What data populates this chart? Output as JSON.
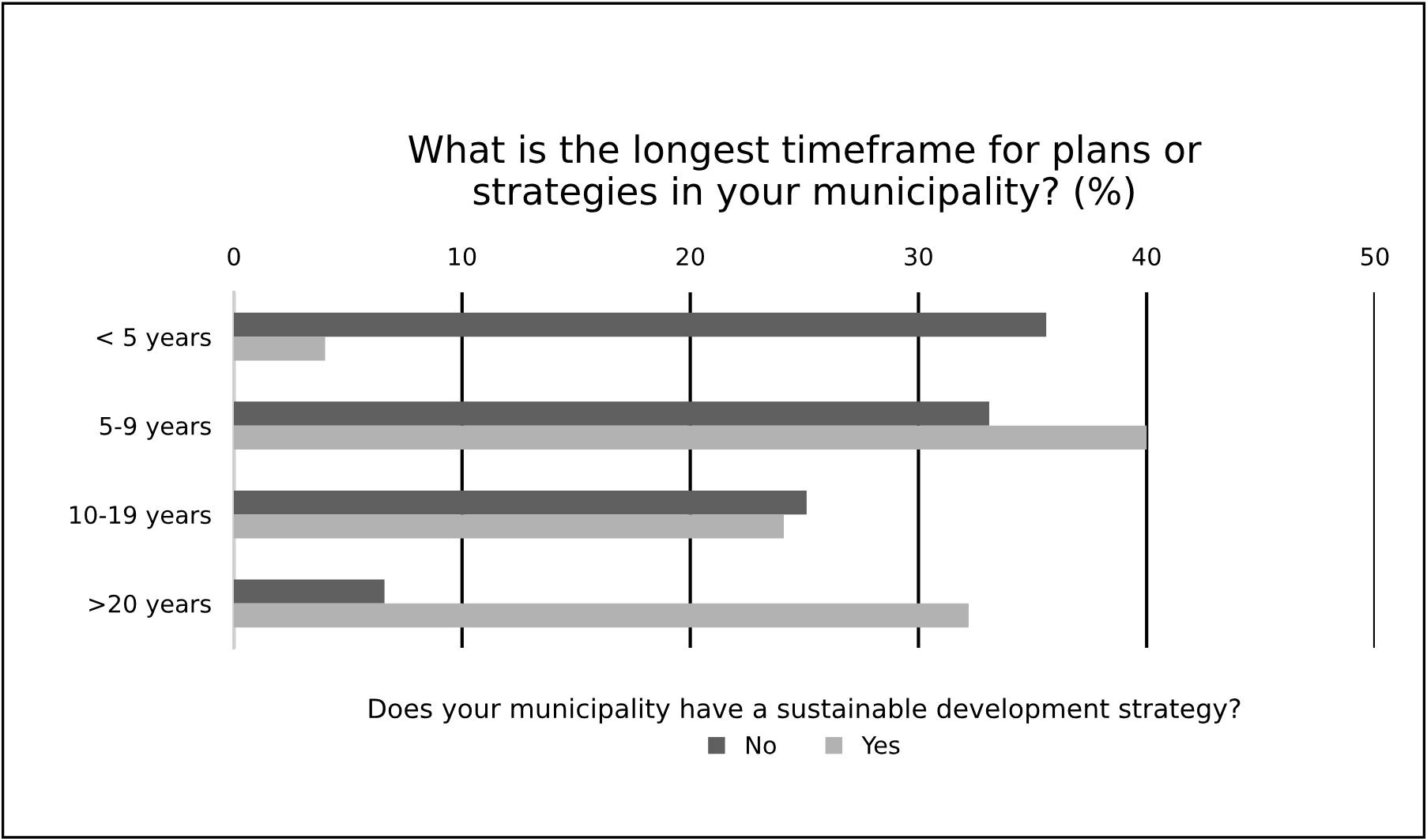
{
  "chart_data": {
    "type": "bar",
    "orientation": "horizontal",
    "title": "What is the longest timeframe for plans or\nstrategies in your municipality? (%)",
    "categories": [
      "< 5 years",
      "5-9 years",
      "10-19 years",
      ">20 years"
    ],
    "series": [
      {
        "name": "No",
        "color": "#5f5f5f",
        "values": [
          35.6,
          33.1,
          25.1,
          6.6
        ]
      },
      {
        "name": "Yes",
        "color": "#b2b2b2",
        "values": [
          4.0,
          40.0,
          24.1,
          32.2
        ]
      }
    ],
    "xlim": [
      0,
      50
    ],
    "xticks": [
      0,
      10,
      20,
      30,
      40,
      50
    ],
    "grid": "x",
    "legend": "bottom",
    "legend_title": "Does your municipality have a sustainable development strategy?"
  }
}
